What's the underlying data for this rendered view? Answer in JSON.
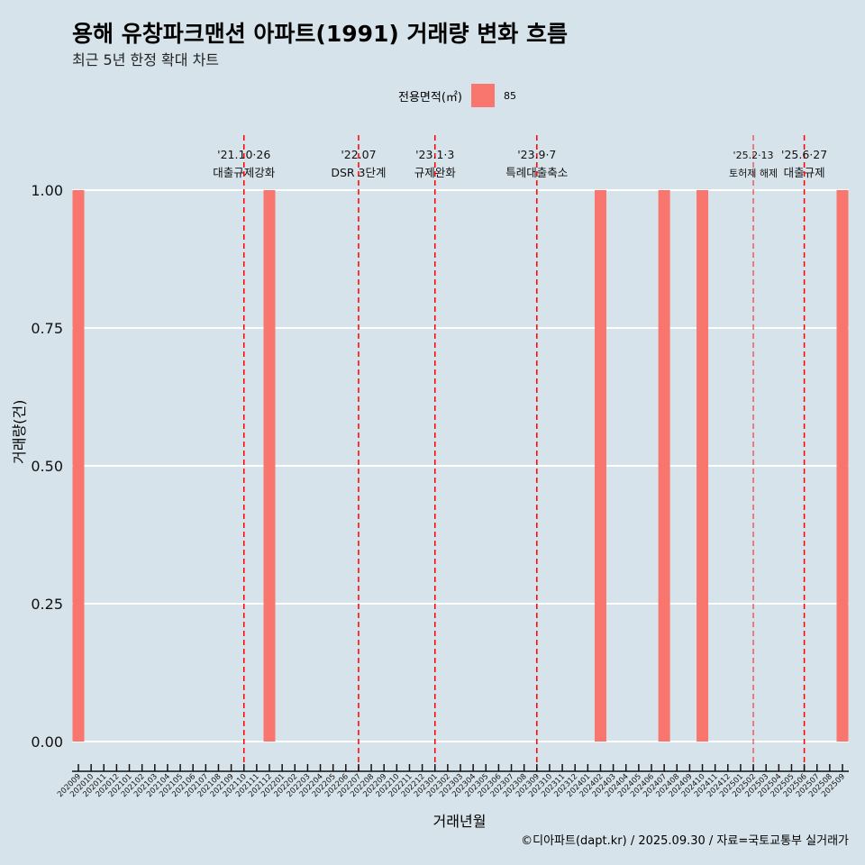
{
  "title": "용해 유창파크맨션 아파트(1991) 거래량 변화 흐름",
  "subtitle": "최근 5년 한정 확대 차트",
  "caption": "©디아파트(dapt.kr) / 2025.09.30 / 자료=국토교통부 실거래가",
  "colors": {
    "bar": "#f8766d",
    "vline": "#ff0000",
    "background": "#d6e3ea"
  },
  "chart_data": {
    "type": "bar",
    "xlabel": "거래년월",
    "ylabel": "거래량(건)",
    "ylim": [
      0,
      1
    ],
    "yticks": [
      "0.00",
      "0.25",
      "0.50",
      "0.75",
      "1.00"
    ],
    "legend": {
      "title": "전용면적(㎡)",
      "entries": [
        "85"
      ],
      "placement": "top"
    },
    "categories": [
      "202009",
      "202010",
      "202011",
      "202012",
      "202101",
      "202102",
      "202103",
      "202104",
      "202105",
      "202106",
      "202107",
      "202108",
      "202109",
      "202110",
      "202111",
      "202112",
      "202201",
      "202202",
      "202203",
      "202204",
      "202205",
      "202206",
      "202207",
      "202208",
      "202209",
      "202210",
      "202211",
      "202212",
      "202301",
      "202302",
      "202303",
      "202304",
      "202305",
      "202306",
      "202307",
      "202308",
      "202309",
      "202310",
      "202311",
      "202312",
      "202401",
      "202402",
      "202403",
      "202404",
      "202405",
      "202406",
      "202407",
      "202408",
      "202409",
      "202410",
      "202411",
      "202412",
      "202501",
      "202502",
      "202503",
      "202504",
      "202505",
      "202506",
      "202507",
      "202508",
      "202509"
    ],
    "series": [
      {
        "name": "85",
        "bars": [
          {
            "x": "202009",
            "value": 1
          },
          {
            "x": "202112",
            "value": 1
          },
          {
            "x": "202402",
            "value": 1
          },
          {
            "x": "202407",
            "value": 1
          },
          {
            "x": "202410",
            "value": 1
          },
          {
            "x": "202509",
            "value": 1
          }
        ]
      }
    ],
    "annotations": [
      {
        "x": "202110",
        "date": "'21.10·26",
        "label": "대출규제강화"
      },
      {
        "x": "202207",
        "date": "'22.07",
        "label": "DSR 3단계"
      },
      {
        "x": "202301",
        "date": "'23.1·3",
        "label": "규제완화"
      },
      {
        "x": "202309",
        "date": "'23.9·7",
        "label": "특례대출축소"
      },
      {
        "x": "202502",
        "date": "'25.2·13",
        "label": "토허제 해제",
        "small": true
      },
      {
        "x": "202506",
        "date": "'25.6·27",
        "label": "대출규제"
      }
    ]
  }
}
